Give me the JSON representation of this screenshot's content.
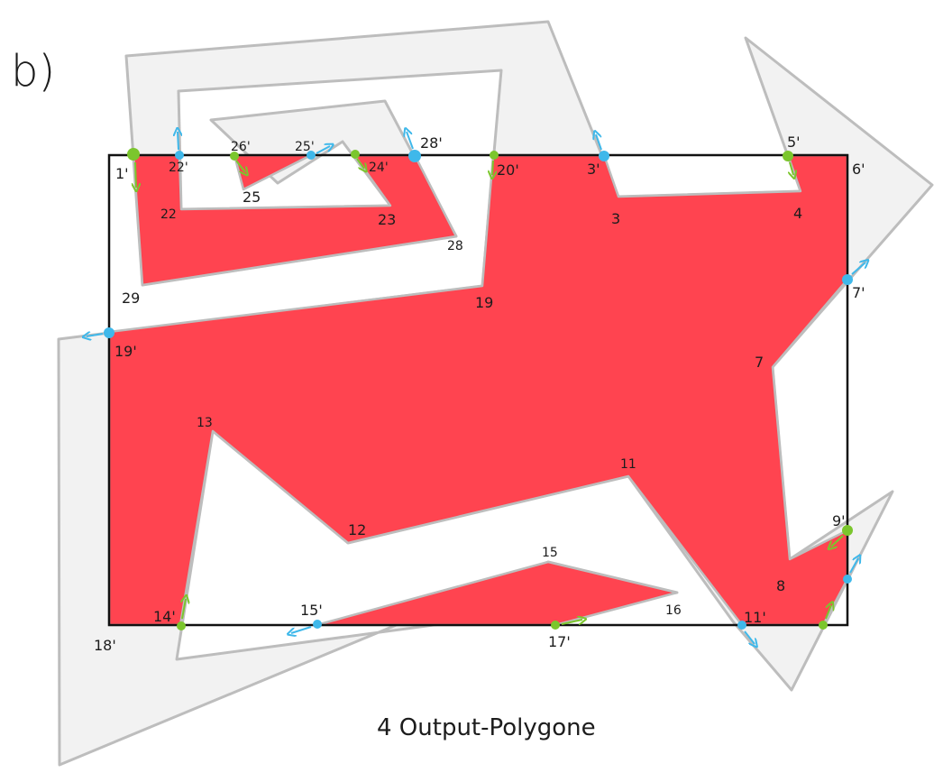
{
  "part_label": "b)",
  "caption": "4 Output-Polygone",
  "colors": {
    "input_fill": "#f2f2f2",
    "input_stroke": "#bdbdbd",
    "output_fill": "#ff4450",
    "frame_stroke": "#111111",
    "entry_point": "#7bc62d",
    "exit_point": "#3fb8ea"
  },
  "vertex_labels": {
    "v1p": "1'",
    "v22p": "22'",
    "v26p": "26'",
    "v25p": "25'",
    "v24p": "24'",
    "v28p": "28'",
    "v20p": "20'",
    "v3p": "3'",
    "v5p": "5'",
    "v6p": "6'",
    "v7p": "7'",
    "v9p": "9'",
    "v11p": "11'",
    "v14p": "14'",
    "v15p": "15'",
    "v17p": "17'",
    "v18p": "18'",
    "v19p": "19'",
    "v3": "3",
    "v4": "4",
    "v7": "7",
    "v8": "8",
    "v11": "11",
    "v12": "12",
    "v13": "13",
    "v15": "15",
    "v16": "16",
    "v19": "19",
    "v22": "22",
    "v23": "23",
    "v25": "25",
    "v28": "28",
    "v29": "29"
  }
}
